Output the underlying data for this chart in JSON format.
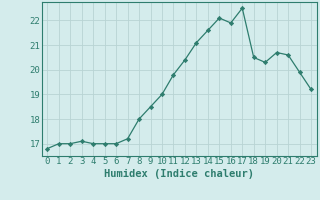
{
  "x": [
    0,
    1,
    2,
    3,
    4,
    5,
    6,
    7,
    8,
    9,
    10,
    11,
    12,
    13,
    14,
    15,
    16,
    17,
    18,
    19,
    20,
    21,
    22,
    23
  ],
  "y": [
    16.8,
    17.0,
    17.0,
    17.1,
    17.0,
    17.0,
    17.0,
    17.2,
    18.0,
    18.5,
    19.0,
    19.8,
    20.4,
    21.1,
    21.6,
    22.1,
    21.9,
    22.5,
    20.5,
    20.3,
    20.7,
    20.6,
    19.9,
    19.2
  ],
  "line_color": "#2e7d6e",
  "marker": "D",
  "marker_size": 2.2,
  "bg_color": "#d4ecec",
  "grid_color": "#b8d4d4",
  "xlabel": "Humidex (Indice chaleur)",
  "xlim": [
    -0.5,
    23.5
  ],
  "ylim": [
    16.5,
    22.75
  ],
  "yticks": [
    17,
    18,
    19,
    20,
    21,
    22
  ],
  "xticks": [
    0,
    1,
    2,
    3,
    4,
    5,
    6,
    7,
    8,
    9,
    10,
    11,
    12,
    13,
    14,
    15,
    16,
    17,
    18,
    19,
    20,
    21,
    22,
    23
  ],
  "tick_color": "#2e7d6e",
  "label_color": "#2e7d6e",
  "spine_color": "#2e7d6e",
  "font_size": 6.5,
  "xlabel_fontsize": 7.5
}
